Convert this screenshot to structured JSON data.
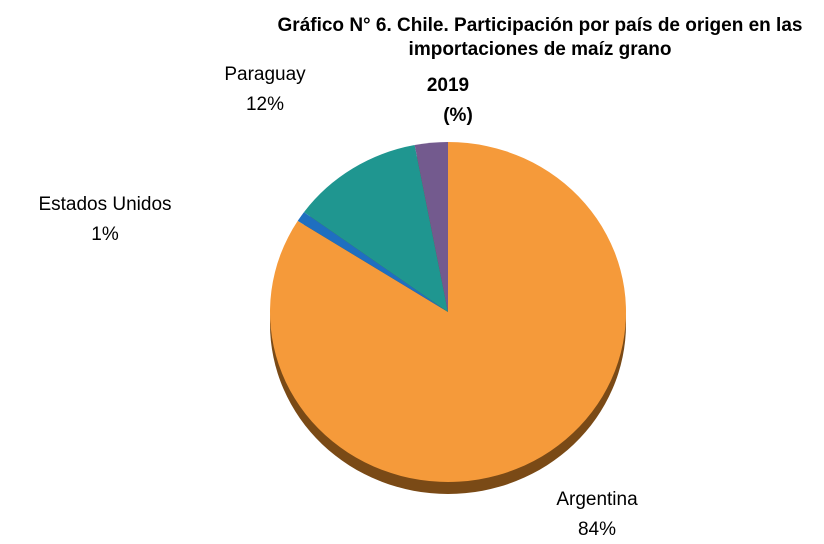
{
  "chart_data": {
    "type": "pie",
    "title": "Gráfico N° 6. Chile. Participación por país de origen en las importaciones de maíz grano",
    "subtitle": "2019",
    "unit": "(%)",
    "categories": [
      "Argentina",
      "Estados Unidos",
      "Paraguay",
      null
    ],
    "values": [
      84,
      1,
      12,
      3
    ],
    "value_labels": [
      "84%",
      "1%",
      "12%",
      null
    ],
    "colors": [
      "#f59a3a",
      "#1f6fc0",
      "#1f9690",
      "#735a8e"
    ]
  }
}
